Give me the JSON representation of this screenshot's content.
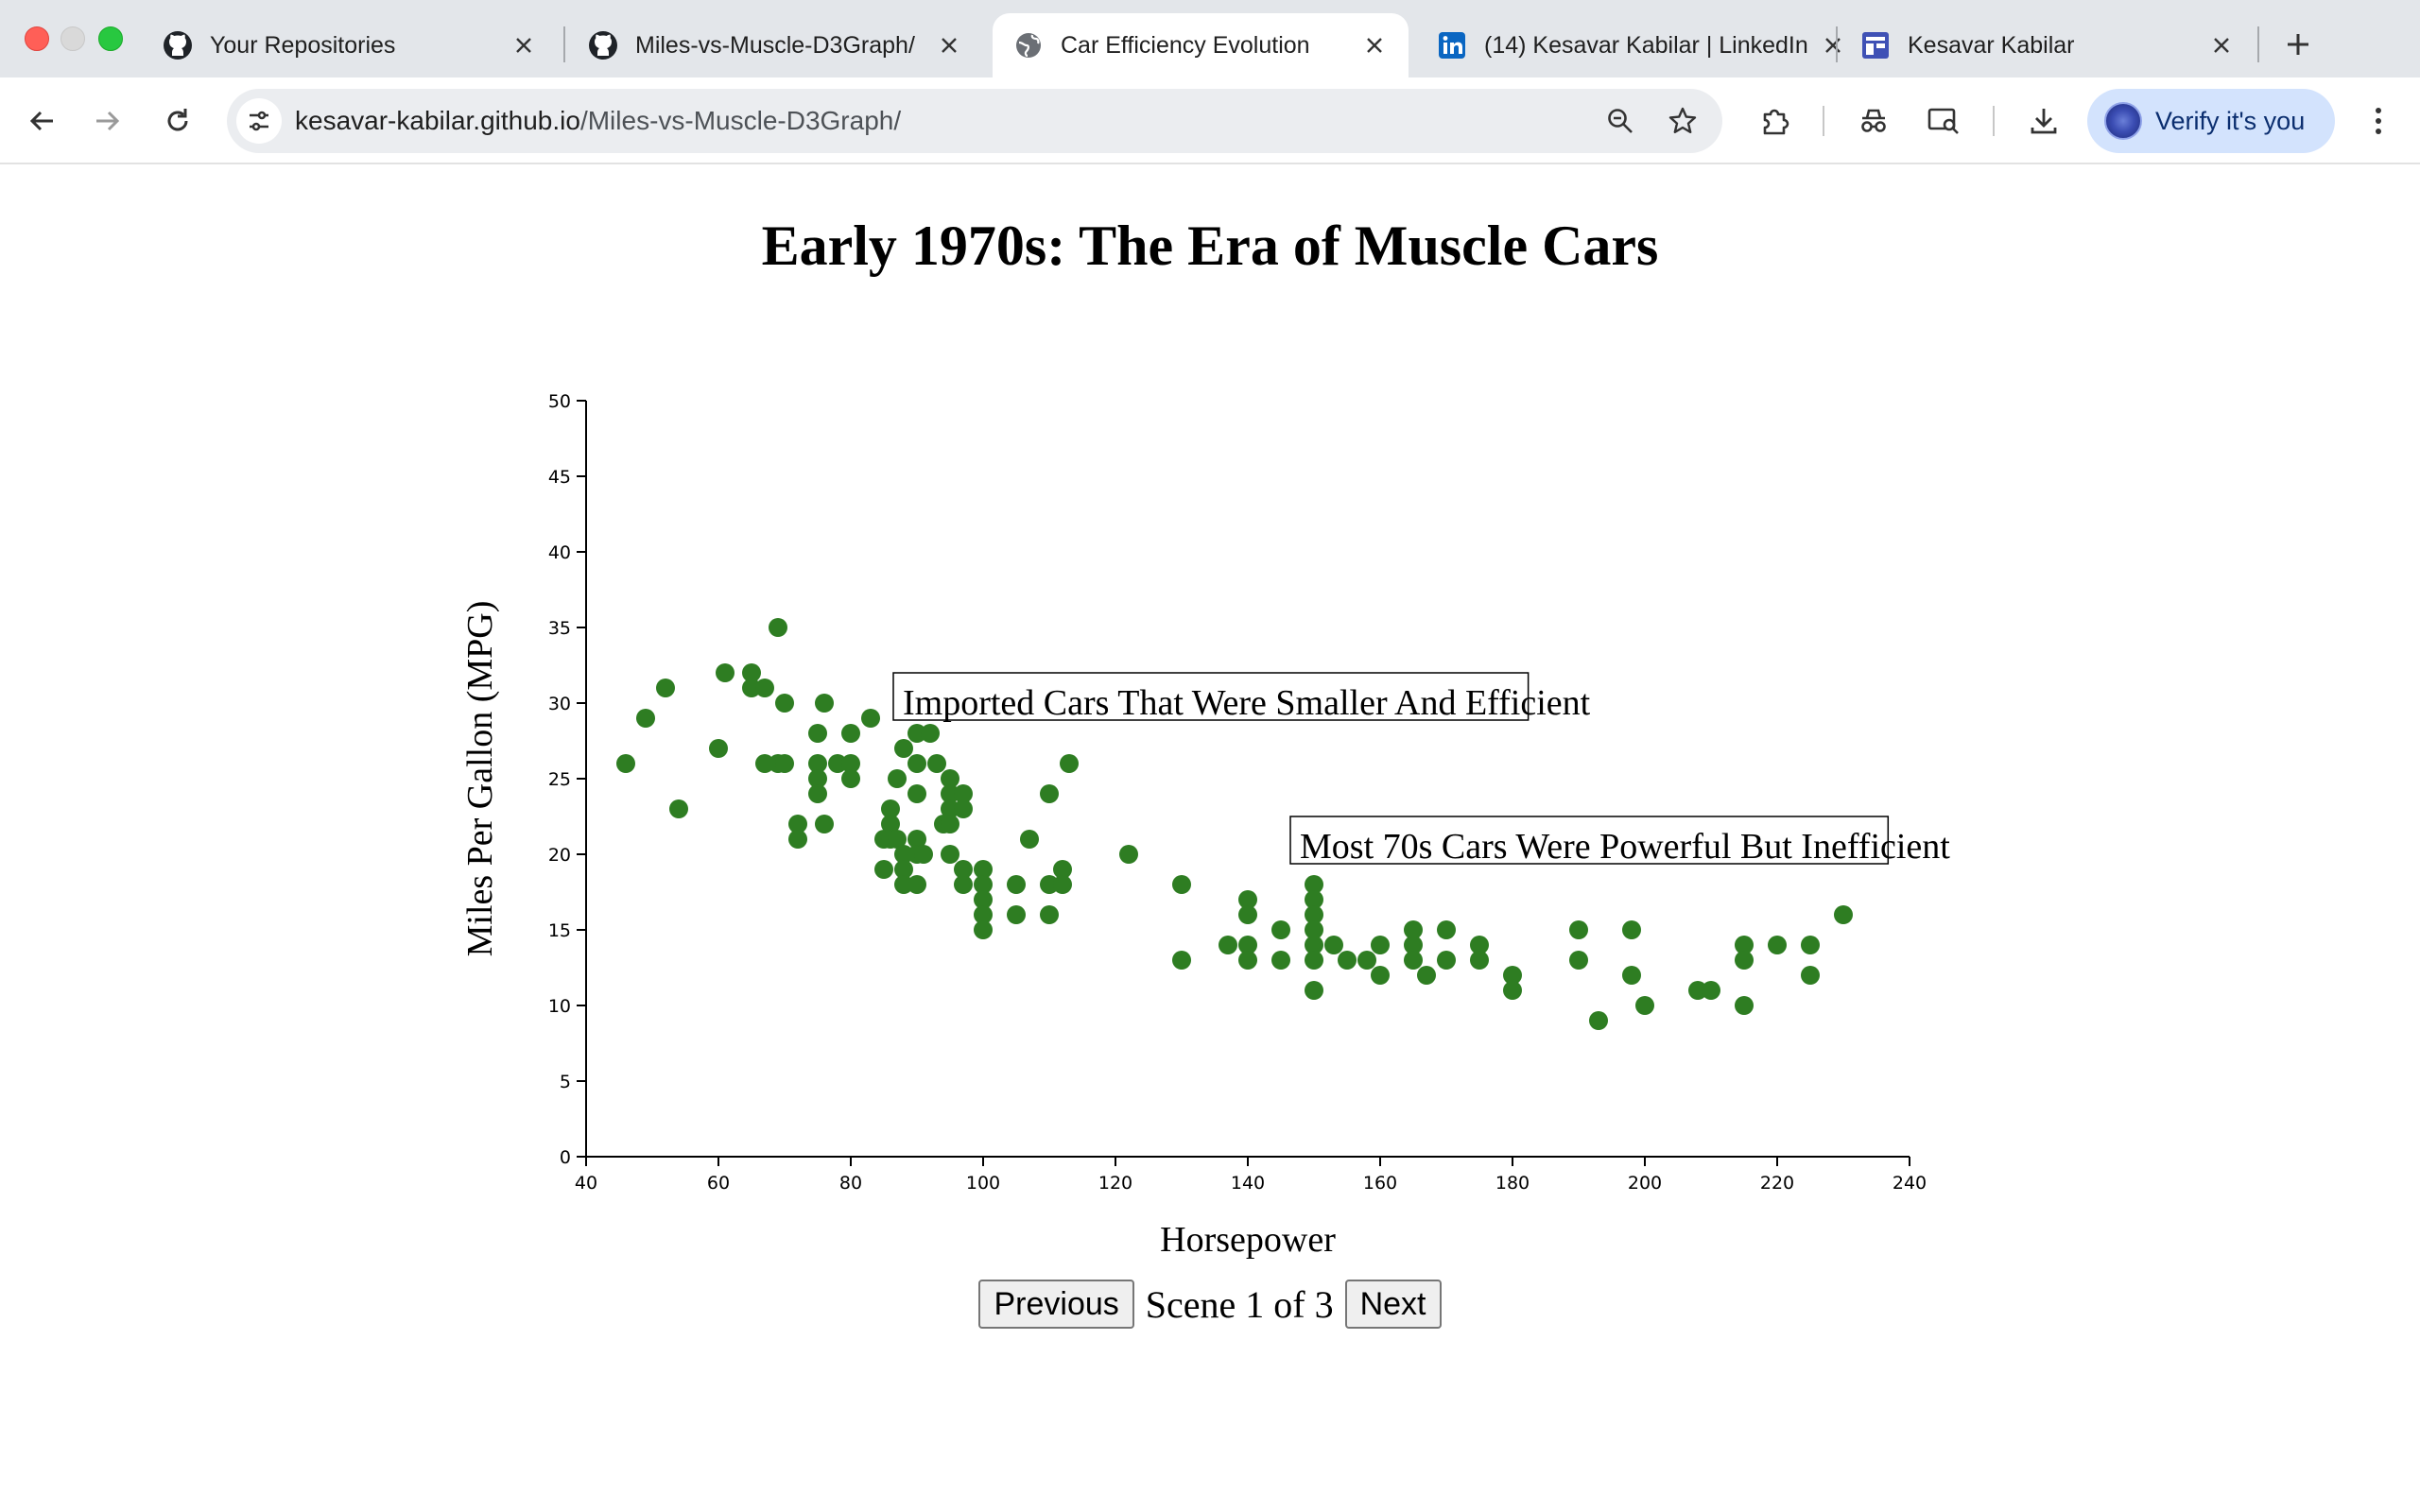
{
  "browser": {
    "tabs": [
      {
        "title": "Your Repositories",
        "icon": "github-icon",
        "active": false
      },
      {
        "title": "Miles-vs-Muscle-D3Graph/",
        "icon": "github-icon",
        "active": false
      },
      {
        "title": "Car Efficiency Evolution",
        "icon": "globe-icon",
        "active": true
      },
      {
        "title": "(14) Kesavar Kabilar | LinkedIn",
        "icon": "linkedin-icon",
        "active": false
      },
      {
        "title": "Kesavar Kabilar",
        "icon": "site-icon",
        "active": false
      }
    ],
    "url_host": "kesavar-kabilar.github.io",
    "url_path": "/Miles-vs-Muscle-D3Graph/",
    "profile_label": "Verify it's you"
  },
  "page": {
    "title": "Early 1970s: The Era of Muscle Cars",
    "prev_label": "Previous",
    "scene_label": "Scene 1 of 3",
    "next_label": "Next"
  },
  "chart_data": {
    "type": "scatter",
    "xlabel": "Horsepower",
    "ylabel": "Miles Per Gallon (MPG)",
    "xlim": [
      40,
      240
    ],
    "ylim": [
      0,
      50
    ],
    "x_ticks": [
      40,
      60,
      80,
      100,
      120,
      140,
      160,
      180,
      200,
      220,
      240
    ],
    "y_ticks": [
      0,
      5,
      10,
      15,
      20,
      25,
      30,
      35,
      40,
      45,
      50
    ],
    "point_color": "#2e7d22",
    "annotations": [
      {
        "text": "Imported Cars That Were Smaller And Efficient",
        "x": 85,
        "y": 30
      },
      {
        "text": "Most 70s Cars Were Powerful But Inefficient",
        "x": 145,
        "y": 20.5
      }
    ],
    "points": [
      [
        46,
        26
      ],
      [
        49,
        29
      ],
      [
        52,
        31
      ],
      [
        54,
        23
      ],
      [
        60,
        27
      ],
      [
        61,
        32
      ],
      [
        65,
        32
      ],
      [
        65,
        31
      ],
      [
        67,
        31
      ],
      [
        67,
        26
      ],
      [
        69,
        35
      ],
      [
        69,
        26
      ],
      [
        70,
        30
      ],
      [
        70,
        26
      ],
      [
        72,
        22
      ],
      [
        72,
        21
      ],
      [
        75,
        28
      ],
      [
        75,
        26
      ],
      [
        75,
        25
      ],
      [
        75,
        24
      ],
      [
        76,
        30
      ],
      [
        76,
        22
      ],
      [
        78,
        26
      ],
      [
        80,
        28
      ],
      [
        80,
        26
      ],
      [
        80,
        25
      ],
      [
        83,
        29
      ],
      [
        85,
        21
      ],
      [
        85,
        19
      ],
      [
        86,
        23
      ],
      [
        86,
        22
      ],
      [
        86,
        21
      ],
      [
        87,
        25
      ],
      [
        87,
        21
      ],
      [
        88,
        27
      ],
      [
        88,
        20
      ],
      [
        88,
        19
      ],
      [
        88,
        18
      ],
      [
        90,
        28
      ],
      [
        90,
        26
      ],
      [
        90,
        24
      ],
      [
        90,
        21
      ],
      [
        90,
        20
      ],
      [
        90,
        18
      ],
      [
        91,
        20
      ],
      [
        92,
        28
      ],
      [
        93,
        26
      ],
      [
        94,
        22
      ],
      [
        95,
        25
      ],
      [
        95,
        24
      ],
      [
        95,
        23
      ],
      [
        95,
        22
      ],
      [
        95,
        20
      ],
      [
        97,
        24
      ],
      [
        97,
        23
      ],
      [
        97,
        19
      ],
      [
        97,
        18
      ],
      [
        100,
        19
      ],
      [
        100,
        18
      ],
      [
        100,
        17
      ],
      [
        100,
        16
      ],
      [
        100,
        15
      ],
      [
        105,
        18
      ],
      [
        105,
        16
      ],
      [
        107,
        21
      ],
      [
        110,
        24
      ],
      [
        110,
        18
      ],
      [
        110,
        16
      ],
      [
        112,
        19
      ],
      [
        112,
        18
      ],
      [
        113,
        26
      ],
      [
        122,
        20
      ],
      [
        130,
        18
      ],
      [
        130,
        13
      ],
      [
        137,
        14
      ],
      [
        140,
        17
      ],
      [
        140,
        16
      ],
      [
        140,
        14
      ],
      [
        140,
        13
      ],
      [
        145,
        15
      ],
      [
        145,
        13
      ],
      [
        150,
        18
      ],
      [
        150,
        17
      ],
      [
        150,
        16
      ],
      [
        150,
        15
      ],
      [
        150,
        14
      ],
      [
        150,
        13
      ],
      [
        150,
        11
      ],
      [
        153,
        14
      ],
      [
        155,
        13
      ],
      [
        158,
        13
      ],
      [
        160,
        14
      ],
      [
        160,
        12
      ],
      [
        165,
        15
      ],
      [
        165,
        14
      ],
      [
        165,
        13
      ],
      [
        167,
        12
      ],
      [
        170,
        15
      ],
      [
        170,
        13
      ],
      [
        175,
        14
      ],
      [
        175,
        13
      ],
      [
        180,
        12
      ],
      [
        180,
        11
      ],
      [
        190,
        15
      ],
      [
        190,
        13
      ],
      [
        193,
        9
      ],
      [
        198,
        15
      ],
      [
        198,
        12
      ],
      [
        200,
        10
      ],
      [
        208,
        11
      ],
      [
        210,
        11
      ],
      [
        215,
        14
      ],
      [
        215,
        13
      ],
      [
        215,
        10
      ],
      [
        220,
        14
      ],
      [
        225,
        14
      ],
      [
        225,
        12
      ],
      [
        230,
        16
      ]
    ]
  }
}
